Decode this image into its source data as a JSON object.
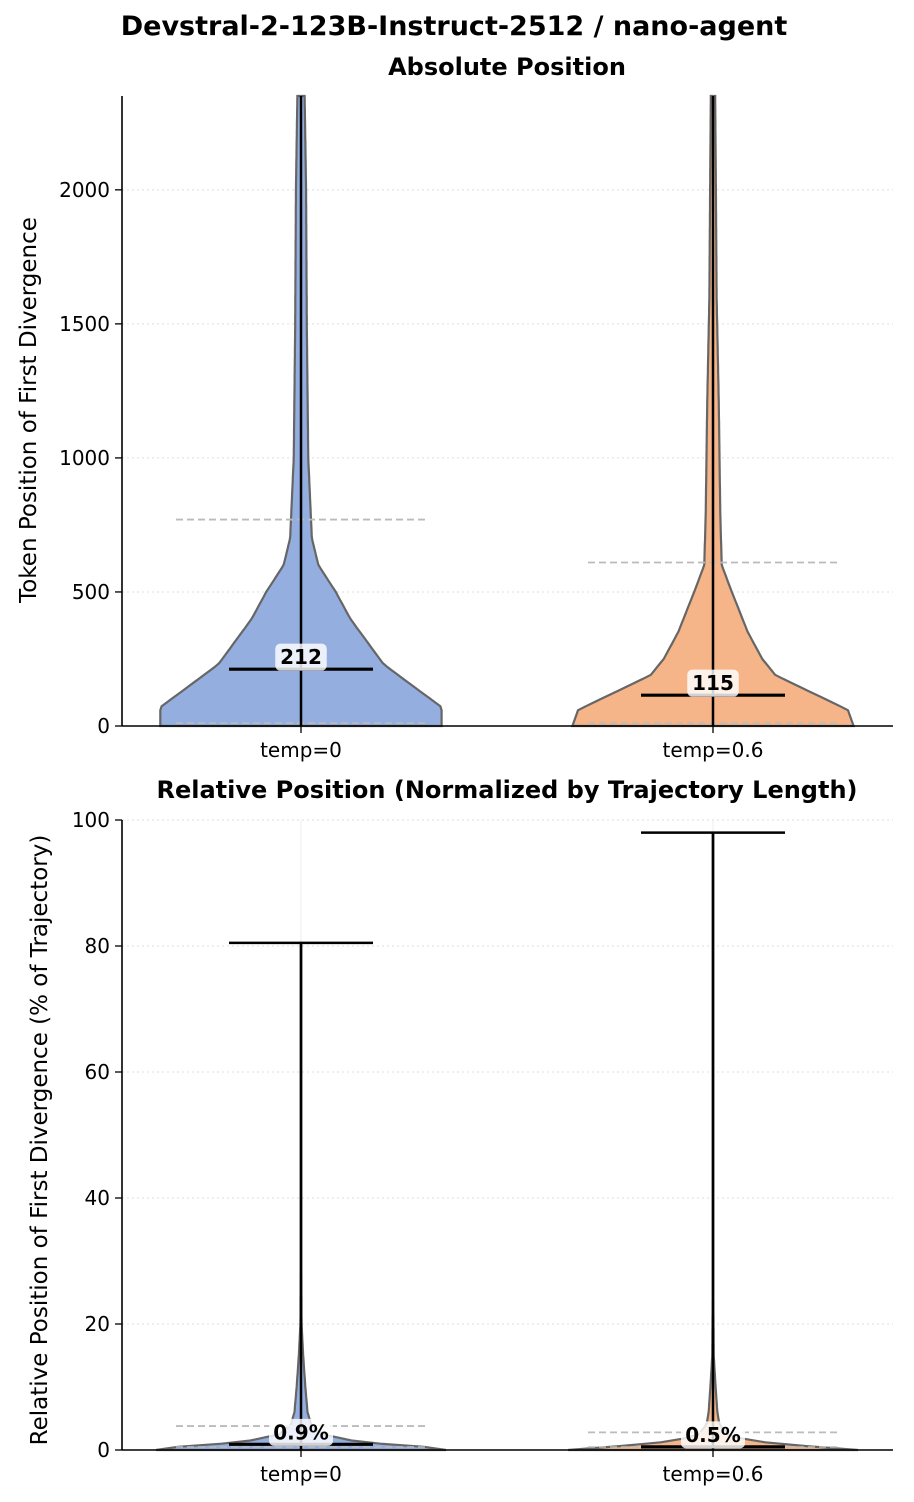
{
  "chart_data": [
    {
      "type": "violin",
      "suptitle": "Devstral-2-123B-Instruct-2512 / nano-agent",
      "title": "Absolute Position",
      "xlabel": "",
      "ylabel": "Token Position of First Divergence",
      "ylim": [
        0,
        2350
      ],
      "yticks": [
        0,
        500,
        1000,
        1500,
        2000
      ],
      "grid": true,
      "series": [
        {
          "name": "temp=0",
          "color": "#8eaade",
          "min": 0,
          "max": 2350,
          "median": 212,
          "median_label": "212",
          "mean": 770,
          "density_profile": [
            [
              0,
              0.97
            ],
            [
              70,
              0.97
            ],
            [
              150,
              0.77
            ],
            [
              230,
              0.57
            ],
            [
              400,
              0.34
            ],
            [
              500,
              0.24
            ],
            [
              600,
              0.12
            ],
            [
              700,
              0.075
            ],
            [
              1000,
              0.05
            ],
            [
              1500,
              0.04
            ],
            [
              2000,
              0.035
            ],
            [
              2350,
              0.025
            ]
          ]
        },
        {
          "name": "temp=0.6",
          "color": "#f4b183",
          "min": 0,
          "max": 2350,
          "median": 115,
          "median_label": "115",
          "mean": 610,
          "density_profile": [
            [
              0,
              0.97
            ],
            [
              60,
              0.93
            ],
            [
              130,
              0.66
            ],
            [
              190,
              0.43
            ],
            [
              250,
              0.34
            ],
            [
              350,
              0.24
            ],
            [
              500,
              0.13
            ],
            [
              600,
              0.06
            ],
            [
              800,
              0.05
            ],
            [
              1200,
              0.04
            ],
            [
              1600,
              0.025
            ],
            [
              2000,
              0.02
            ],
            [
              2350,
              0.015
            ]
          ]
        }
      ]
    },
    {
      "type": "violin",
      "title": "Relative Position (Normalized by Trajectory Length)",
      "xlabel": "",
      "ylabel": "Relative Position of First Divergence (% of Trajectory)",
      "ylim": [
        0,
        100
      ],
      "yticks": [
        0,
        20,
        40,
        60,
        80,
        100
      ],
      "grid": true,
      "series": [
        {
          "name": "temp=0",
          "color": "#8eaade",
          "min": 0,
          "max": 80.5,
          "median": 0.9,
          "median_label": "0.9%",
          "mean": 3.8,
          "density_profile": [
            [
              0,
              1.0
            ],
            [
              0.5,
              0.85
            ],
            [
              1,
              0.55
            ],
            [
              1.5,
              0.35
            ],
            [
              2.5,
              0.15
            ],
            [
              4,
              0.07
            ],
            [
              6,
              0.045
            ],
            [
              10,
              0.03
            ],
            [
              15,
              0.015
            ],
            [
              20,
              0.004
            ],
            [
              30,
              0.002
            ],
            [
              80.5,
              0.002
            ]
          ]
        },
        {
          "name": "temp=0.6",
          "color": "#f4b183",
          "min": 0,
          "max": 98,
          "median": 0.5,
          "median_label": "0.5%",
          "mean": 2.8,
          "density_profile": [
            [
              0,
              1.0
            ],
            [
              0.5,
              0.7
            ],
            [
              1,
              0.45
            ],
            [
              1.5,
              0.25
            ],
            [
              2.5,
              0.1
            ],
            [
              4,
              0.045
            ],
            [
              6,
              0.03
            ],
            [
              10,
              0.018
            ],
            [
              15,
              0.005
            ],
            [
              25,
              0.002
            ],
            [
              98,
              0.002
            ]
          ]
        }
      ]
    }
  ]
}
